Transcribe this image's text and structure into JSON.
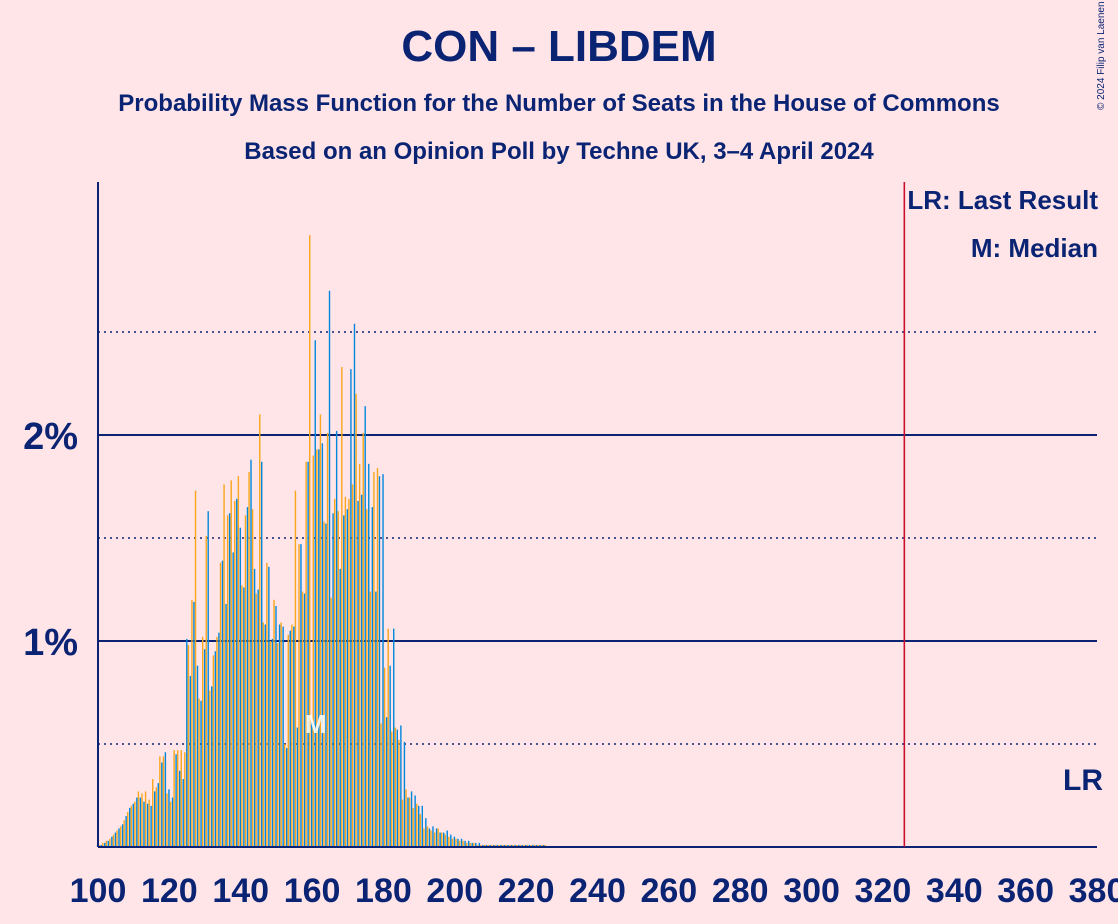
{
  "header": {
    "title": "CON – LIBDEM",
    "subtitle_1": "Probability Mass Function for the Number of Seats in the House of Commons",
    "subtitle_2": "Based on an Opinion Poll by Techne UK, 3–4 April 2024",
    "copyright": "© 2024 Filip van Laenen"
  },
  "legend": {
    "last_result": "LR: Last Result",
    "median": "M: Median"
  },
  "colors": {
    "background": "#ffe4e8",
    "text": "#0a2473",
    "con_bar": "#0087dc",
    "libdem_bar": "#faa61a",
    "lr_line": "#c8102e"
  },
  "chart_data": {
    "type": "bar",
    "title": "CON – LIBDEM",
    "xlim": [
      100,
      380
    ],
    "ylim": [
      0,
      3.2
    ],
    "x_ticks": [
      100,
      120,
      140,
      160,
      180,
      200,
      220,
      240,
      260,
      280,
      300,
      320,
      340,
      360,
      380
    ],
    "y_ticks": [
      {
        "value": 1,
        "label": "1%"
      },
      {
        "value": 2,
        "label": "2%"
      }
    ],
    "y_minor_gridlines": [
      0.5,
      1.5,
      2.5
    ],
    "last_result": {
      "x": 326,
      "label": "LR"
    },
    "median": {
      "x": 161,
      "label": "M"
    },
    "series": [
      {
        "name": "CON",
        "x": [
          100,
          101,
          102,
          103,
          104,
          105,
          106,
          107,
          108,
          109,
          110,
          111,
          112,
          113,
          114,
          115,
          116,
          117,
          118,
          119,
          120,
          121,
          122,
          123,
          124,
          125,
          126,
          127,
          128,
          129,
          130,
          131,
          132,
          133,
          134,
          135,
          136,
          137,
          138,
          139,
          140,
          141,
          142,
          143,
          144,
          145,
          146,
          147,
          148,
          149,
          150,
          151,
          152,
          153,
          154,
          155,
          156,
          157,
          158,
          159,
          160,
          161,
          162,
          163,
          164,
          165,
          166,
          167,
          168,
          169,
          170,
          171,
          172,
          173,
          174,
          175,
          176,
          177,
          178,
          179,
          180,
          181,
          182,
          183,
          184,
          185,
          186,
          187,
          188,
          189,
          190,
          191,
          192,
          193,
          194,
          195,
          196,
          197,
          198,
          199,
          200,
          201,
          202,
          203,
          204,
          205,
          206,
          207,
          208,
          209,
          210,
          211,
          212,
          213,
          214,
          215,
          216,
          217,
          218,
          219,
          220,
          221,
          222,
          223,
          224,
          225
        ],
        "values": [
          0.01,
          0.01,
          0.02,
          0.03,
          0.05,
          0.07,
          0.09,
          0.11,
          0.15,
          0.19,
          0.21,
          0.24,
          0.24,
          0.22,
          0.21,
          0.2,
          0.27,
          0.31,
          0.41,
          0.46,
          0.28,
          0.24,
          0.45,
          0.37,
          0.33,
          1.01,
          0.83,
          1.19,
          0.88,
          0.71,
          0.96,
          1.63,
          0.78,
          0.95,
          1.04,
          1.39,
          1.18,
          1.62,
          1.43,
          1.69,
          1.55,
          1.26,
          1.65,
          1.88,
          1.35,
          1.25,
          1.87,
          1.08,
          1.36,
          1.01,
          1.17,
          1.08,
          1.07,
          0.48,
          1.05,
          1.07,
          0.58,
          1.47,
          1.23,
          1.87,
          0.61,
          2.46,
          1.93,
          1.96,
          1.57,
          2.7,
          1.62,
          2.02,
          1.35,
          1.61,
          1.64,
          2.32,
          2.54,
          1.68,
          1.71,
          2.14,
          1.86,
          1.65,
          1.24,
          1.8,
          1.81,
          0.63,
          0.88,
          1.06,
          0.57,
          0.59,
          0.51,
          0.24,
          0.27,
          0.25,
          0.2,
          0.2,
          0.14,
          0.09,
          0.1,
          0.09,
          0.07,
          0.07,
          0.08,
          0.06,
          0.05,
          0.04,
          0.04,
          0.03,
          0.03,
          0.02,
          0.02,
          0.02,
          0.01,
          0.01,
          0.01,
          0.01,
          0.01,
          0.01,
          0.01,
          0.01,
          0.01,
          0.01,
          0.01,
          0.01,
          0.01,
          0.01,
          0.01,
          0.01,
          0.01,
          0.01
        ]
      },
      {
        "name": "LIBDEM",
        "x": [
          100,
          101,
          102,
          103,
          104,
          105,
          106,
          107,
          108,
          109,
          110,
          111,
          112,
          113,
          114,
          115,
          116,
          117,
          118,
          119,
          120,
          121,
          122,
          123,
          124,
          125,
          126,
          127,
          128,
          129,
          130,
          131,
          132,
          133,
          134,
          135,
          136,
          137,
          138,
          139,
          140,
          141,
          142,
          143,
          144,
          145,
          146,
          147,
          148,
          149,
          150,
          151,
          152,
          153,
          154,
          155,
          156,
          157,
          158,
          159,
          160,
          161,
          162,
          163,
          164,
          165,
          166,
          167,
          168,
          169,
          170,
          171,
          172,
          173,
          174,
          175,
          176,
          177,
          178,
          179,
          180,
          181,
          182,
          183,
          184,
          185,
          186,
          187,
          188,
          189,
          190,
          191,
          192,
          193,
          194,
          195,
          196,
          197,
          198,
          199,
          200,
          201,
          202,
          203,
          204,
          205,
          206,
          207,
          208,
          209,
          210,
          211,
          212,
          213,
          214,
          215,
          216,
          217,
          218,
          219,
          220,
          221,
          222,
          223,
          224,
          225
        ],
        "values": [
          0.01,
          0.02,
          0.03,
          0.04,
          0.06,
          0.08,
          0.1,
          0.13,
          0.17,
          0.2,
          0.22,
          0.27,
          0.26,
          0.27,
          0.23,
          0.33,
          0.29,
          0.44,
          0.44,
          0.26,
          0.22,
          0.47,
          0.47,
          0.47,
          0.46,
          0.98,
          1.2,
          1.73,
          0.72,
          1.02,
          1.51,
          0.76,
          0.93,
          1.02,
          1.38,
          1.76,
          1.61,
          1.78,
          1.68,
          1.8,
          1.27,
          1.61,
          1.82,
          1.64,
          1.23,
          2.1,
          1.09,
          1.38,
          1.0,
          1.2,
          0.99,
          1.09,
          0.5,
          1.03,
          1.08,
          1.73,
          1.47,
          1.24,
          1.87,
          2.97,
          1.9,
          1.93,
          2.1,
          1.58,
          2.01,
          1.21,
          1.69,
          1.63,
          2.33,
          1.7,
          1.69,
          1.76,
          2.2,
          1.86,
          2.01,
          1.64,
          1.24,
          1.82,
          1.84,
          0.6,
          0.87,
          1.06,
          0.56,
          0.58,
          0.52,
          0.23,
          0.28,
          0.24,
          0.19,
          0.21,
          0.16,
          0.09,
          0.1,
          0.08,
          0.07,
          0.09,
          0.07,
          0.06,
          0.05,
          0.04,
          0.04,
          0.03,
          0.03,
          0.02,
          0.02,
          0.02,
          0.01,
          0.01,
          0.01,
          0.01,
          0.01,
          0.01,
          0.01,
          0.01,
          0.01,
          0.01,
          0.01,
          0.01,
          0.01,
          0.01,
          0.01,
          0.01,
          0.01,
          0.01,
          0.01,
          0.01
        ]
      }
    ]
  }
}
